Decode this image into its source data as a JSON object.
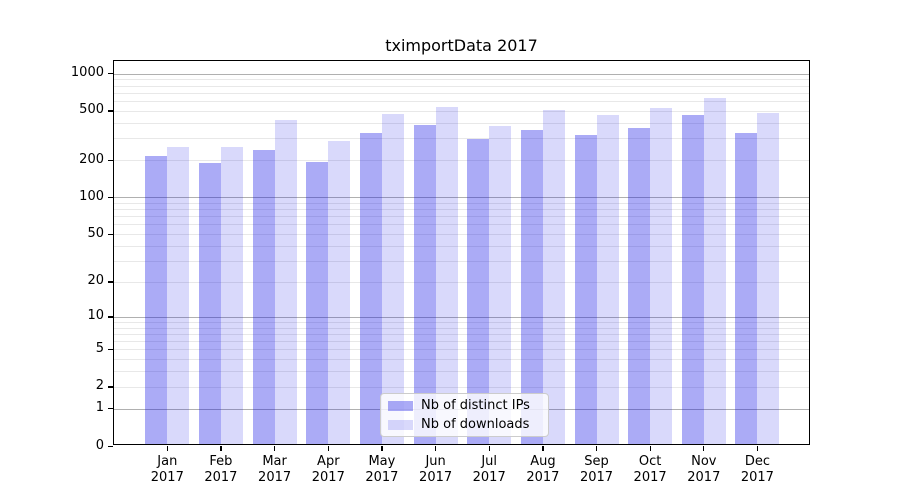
{
  "chart_data": {
    "type": "bar",
    "title": "tximportData 2017",
    "categories": [
      "Jan",
      "Feb",
      "Mar",
      "Apr",
      "May",
      "Jun",
      "Jul",
      "Aug",
      "Sep",
      "Oct",
      "Nov",
      "Dec"
    ],
    "year_label": "2017",
    "series": [
      {
        "name": "Nb of distinct IPs",
        "color": "rgba(10,10,230,0.34)",
        "color_hex_on_white": "#acacf7",
        "values": [
          210,
          182,
          234,
          187,
          318,
          371,
          286,
          336,
          308,
          349,
          450,
          321
        ]
      },
      {
        "name": "Nb of downloads",
        "color": "rgba(10,10,230,0.155)",
        "color_hex_on_white": "#d9d9fb",
        "values": [
          248,
          245,
          407,
          274,
          455,
          521,
          362,
          490,
          447,
          506,
          612,
          461
        ]
      }
    ],
    "xlabel": "",
    "ylabel": "",
    "yscale": "log1p",
    "ylim": [
      0,
      1260
    ],
    "yticks": [
      1000,
      500,
      200,
      100,
      50,
      20,
      10,
      5,
      2,
      1,
      0
    ],
    "grid": true,
    "grid_major_values": [
      1,
      10,
      100,
      1000
    ],
    "legend_position": "lower center",
    "axis_color": "#000000",
    "major_grid_color": "#b0b0b0",
    "minor_grid_color": "#e8e8e8",
    "background_color": "#ffffff"
  }
}
